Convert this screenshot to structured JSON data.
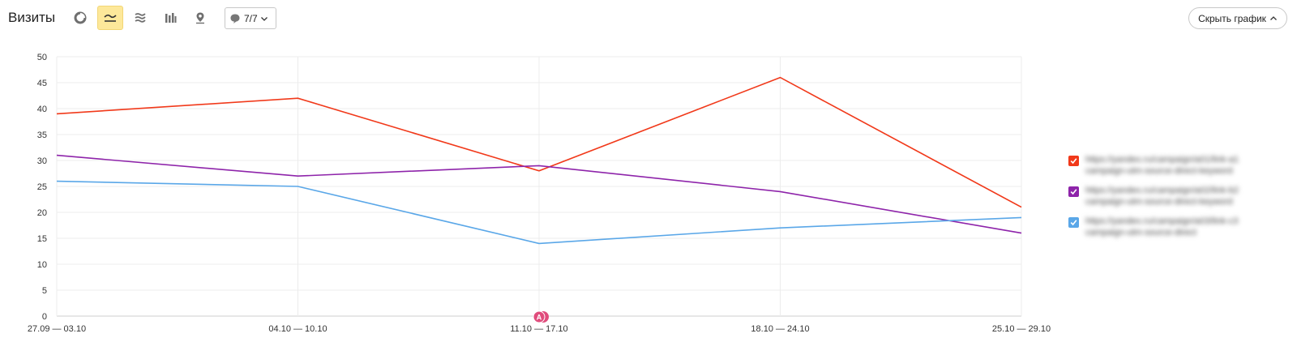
{
  "header": {
    "title": "Визиты",
    "annotations_count": "7/7",
    "hide_chart_label": "Скрыть график"
  },
  "toolbar_icons": [
    "pie-chart-icon",
    "line-chart-icon",
    "area-chart-icon",
    "bar-chart-icon",
    "map-icon"
  ],
  "legend": {
    "items": [
      {
        "color": "#f1391a",
        "text": "https://yandex.ru/campaign/a01/link-a1 campaign-utm-source-direct-keyword"
      },
      {
        "color": "#8e24aa",
        "text": "https://yandex.ru/campaign/a02/link-b2 campaign-utm-source-direct-keyword"
      },
      {
        "color": "#5aa7e8",
        "text": "https://yandex.ru/campaign/a03/link-c3 campaign-utm-source-direct"
      }
    ]
  },
  "annotation_marker": {
    "label": "A"
  },
  "chart_data": {
    "type": "line",
    "categories": [
      "27.09 — 03.10",
      "04.10 — 10.10",
      "11.10 — 17.10",
      "18.10 — 24.10",
      "25.10 — 29.10"
    ],
    "ylim": [
      0,
      50
    ],
    "yticks": [
      0,
      5,
      10,
      15,
      20,
      25,
      30,
      35,
      40,
      45,
      50
    ],
    "grid": true,
    "legend_position": "right",
    "series": [
      {
        "color": "#f1391a",
        "values": [
          39,
          42,
          28,
          46,
          21
        ]
      },
      {
        "color": "#8e24aa",
        "values": [
          31,
          27,
          29,
          24,
          16
        ]
      },
      {
        "color": "#5aa7e8",
        "values": [
          26,
          25,
          14,
          17,
          19
        ]
      }
    ]
  }
}
